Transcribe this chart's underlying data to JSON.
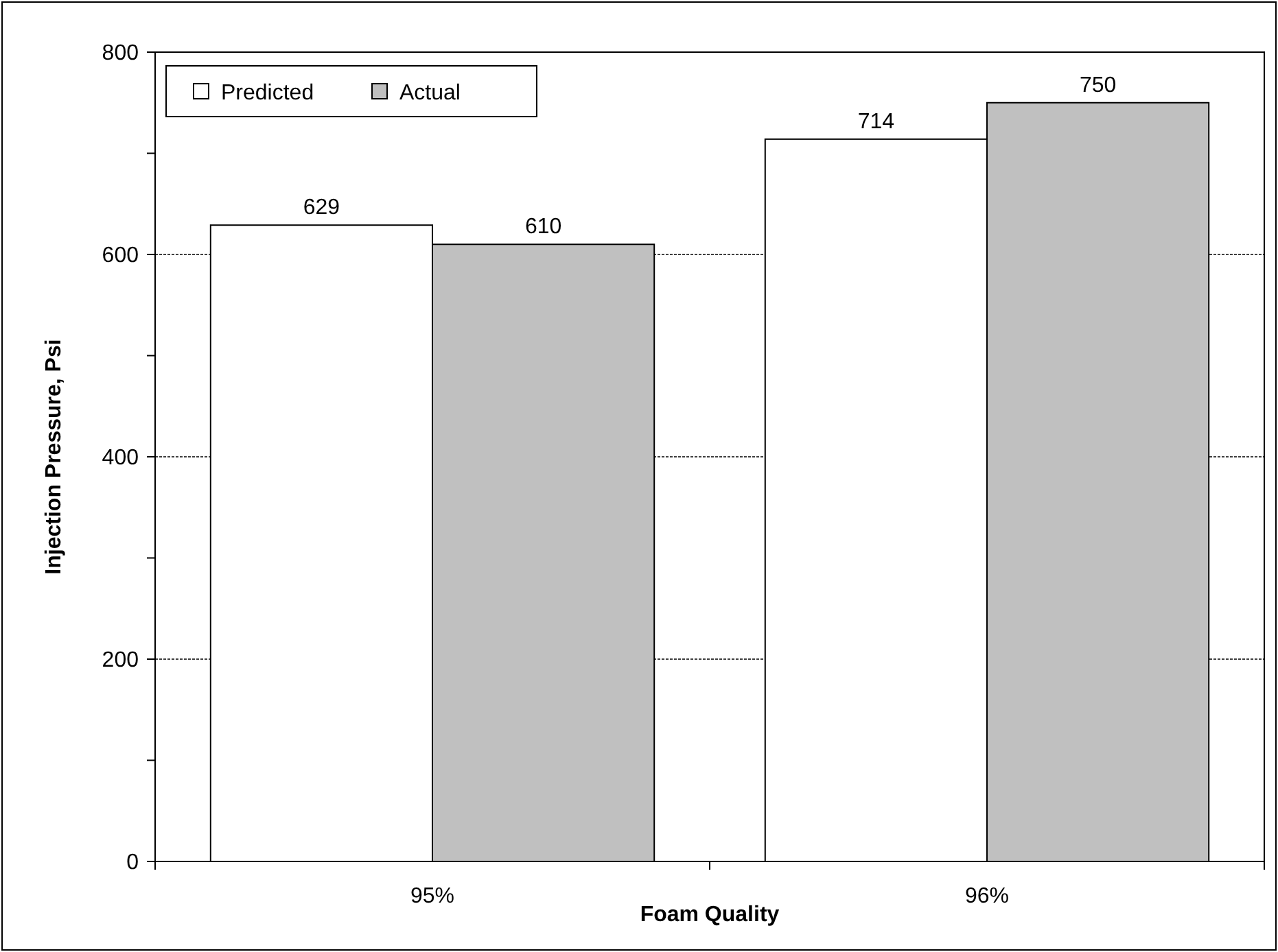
{
  "chart_data": {
    "type": "bar",
    "xlabel": "Foam Quality",
    "ylabel": "Injection Pressure, Psi",
    "categories": [
      "95%",
      "96%"
    ],
    "series": [
      {
        "name": "Predicted",
        "color": "#ffffff",
        "values": [
          629,
          714
        ]
      },
      {
        "name": "Actual",
        "color": "#c0c0c0",
        "values": [
          610,
          750
        ]
      }
    ],
    "ylim": [
      0,
      800
    ],
    "yticks": [
      0,
      {
        "value": 100,
        "label": null
      },
      200,
      {
        "value": 300,
        "label": null
      },
      400,
      {
        "value": 500,
        "label": null
      },
      600,
      {
        "value": 700,
        "label": null
      },
      800
    ],
    "grid": "y",
    "legend": "top left",
    "data_labels": true
  }
}
